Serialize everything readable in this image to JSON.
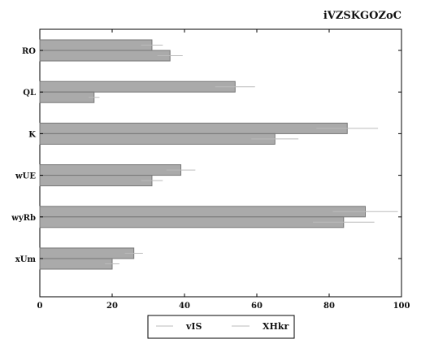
{
  "chart_data": {
    "type": "bar",
    "orientation": "horizontal",
    "title": "iVZSKGOZoC",
    "xlabel": "",
    "ylabel": "",
    "xlim": [
      0,
      100
    ],
    "x_ticks": [
      0,
      20,
      40,
      60,
      80,
      100
    ],
    "categories": [
      "RO",
      "QL",
      "K",
      "wUE",
      "wyRb",
      "xUm"
    ],
    "series": [
      {
        "name": "vIS",
        "values": [
          31,
          54,
          85,
          39,
          90,
          26
        ],
        "errors": [
          3,
          5.5,
          8.5,
          4,
          9,
          2.5
        ]
      },
      {
        "name": "XHkr",
        "values": [
          36,
          15,
          65,
          31,
          84,
          20
        ],
        "errors": [
          3.5,
          1.5,
          6.5,
          3,
          8.5,
          2
        ]
      }
    ],
    "bar_color": "#aaaaaa",
    "bar_edge_color": "#777777",
    "error_color": "#bbbbbb",
    "grid": false,
    "legend_position": "bottom-center"
  }
}
